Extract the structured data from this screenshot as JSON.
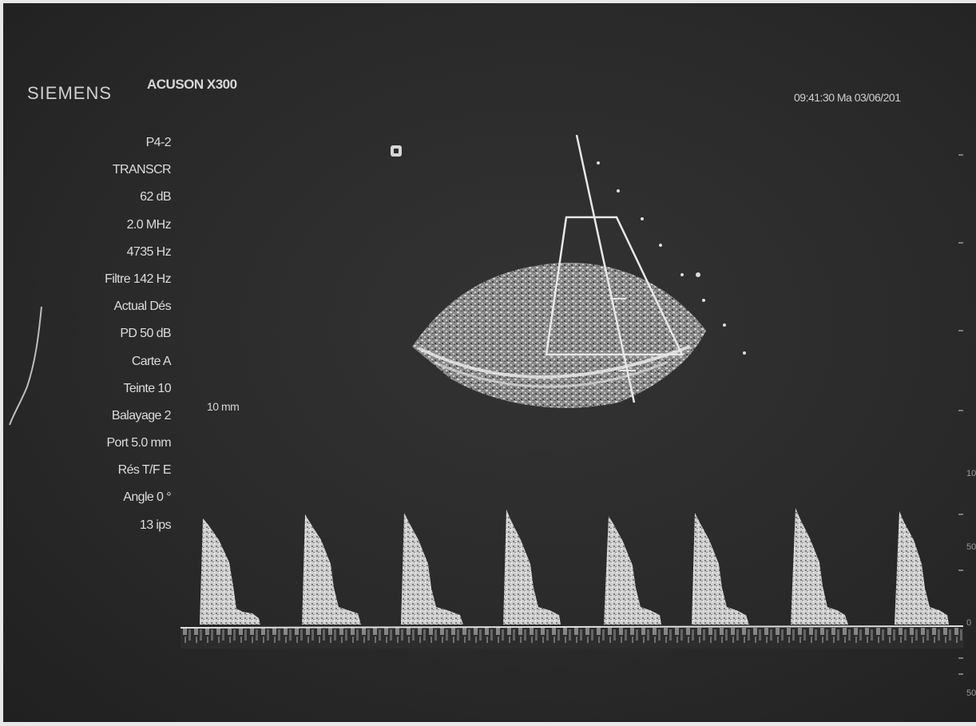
{
  "header": {
    "brand": "SIEMENS",
    "model": "ACUSON X300",
    "datetime": "09:41:30  Ma  03/06/201"
  },
  "parameters": [
    "P4-2",
    "TRANSCR",
    "62 dB",
    "2.0 MHz",
    "4735 Hz",
    "Filtre 142 Hz",
    "Actual Dés",
    "PD 50 dB",
    "Carte A",
    "Teinte 10",
    "Balayage 2",
    "Port 5.0 mm",
    "Rés T/F E",
    "Angle 0 °",
    "13 ips"
  ],
  "depth_label": "10 mm",
  "right_scale": [
    "10",
    "50",
    "0",
    "50"
  ],
  "colors": {
    "screen": "#2a2a2a",
    "text": "#d6d6d6",
    "echo": "#e0e0e0"
  },
  "icons": {
    "orientation_marker": "orientation-marker-icon"
  }
}
